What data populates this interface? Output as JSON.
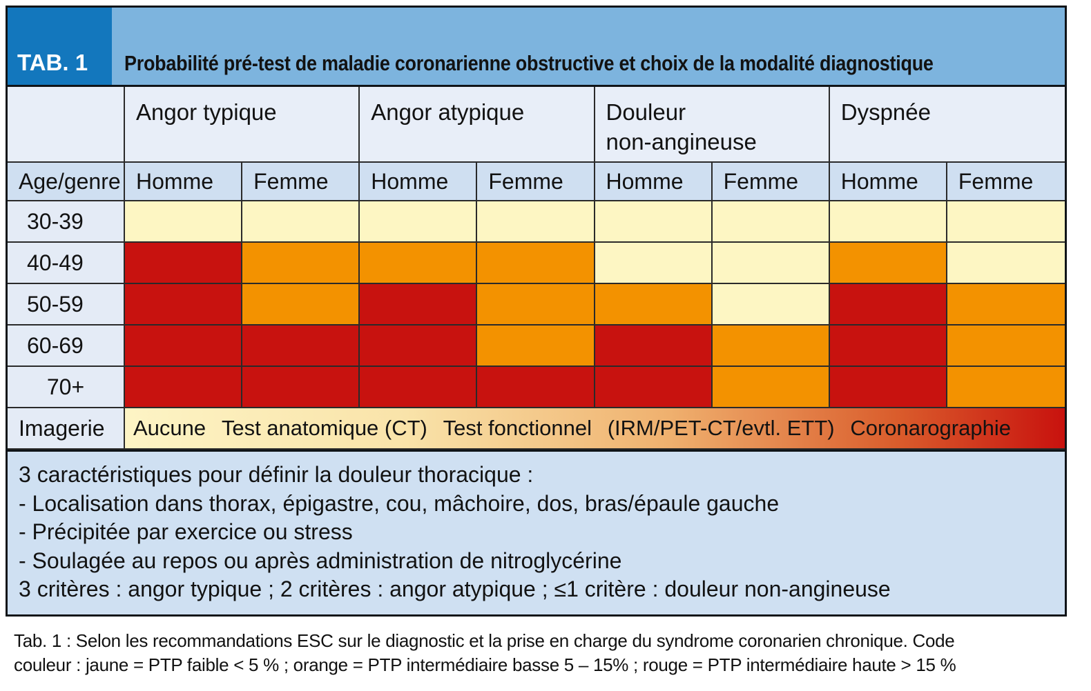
{
  "header": {
    "tab_label": "TAB. 1",
    "title": "Probabilité pré-test de maladie coronarienne obstructive et choix de la modalité diagnostique"
  },
  "colors": {
    "yellow": "#fdf6c3",
    "orange": "#f39200",
    "red": "#c8120f",
    "tab_box_blue": "#1377bd",
    "banner_blue": "#7db4de",
    "group_header_bg": "#e8eef8",
    "sub_header_bg": "#cfdff1",
    "row_label_bg": "#e4ebf6",
    "footnote_bg": "#cfe0f2"
  },
  "table": {
    "corner_label": "",
    "group_headers": [
      "Angor typique",
      "Angor atypique",
      "Douleur\nnon-angineuse",
      "Dyspnée"
    ],
    "sub_headers": [
      "Age/genre",
      "Homme",
      "Femme",
      "Homme",
      "Femme",
      "Homme",
      "Femme",
      "Homme",
      "Femme"
    ],
    "rows": [
      {
        "label": "30-39",
        "center": false,
        "cells": [
          "yellow",
          "yellow",
          "yellow",
          "yellow",
          "yellow",
          "yellow",
          "yellow",
          "yellow"
        ]
      },
      {
        "label": "40-49",
        "center": false,
        "cells": [
          "red",
          "orange",
          "orange",
          "orange",
          "yellow",
          "yellow",
          "orange",
          "yellow"
        ]
      },
      {
        "label": "50-59",
        "center": false,
        "cells": [
          "red",
          "orange",
          "red",
          "orange",
          "orange",
          "yellow",
          "red",
          "orange"
        ]
      },
      {
        "label": "60-69",
        "center": false,
        "cells": [
          "red",
          "red",
          "red",
          "orange",
          "red",
          "orange",
          "red",
          "orange"
        ]
      },
      {
        "label": "70+",
        "center": true,
        "cells": [
          "red",
          "red",
          "red",
          "red",
          "red",
          "orange",
          "red",
          "orange"
        ]
      }
    ],
    "imagerie": {
      "label": "Imagerie",
      "options": [
        "Aucune",
        "Test anatomique (CT)",
        "Test fonctionnel",
        "(IRM/PET-CT/evtl. ETT)",
        "Coronarographie"
      ]
    }
  },
  "footnote_lines": [
    "3 caractéristiques pour définir la douleur thoracique :",
    "- Localisation dans thorax, épigastre, cou, mâchoire, dos, bras/épaule gauche",
    "- Précipitée par exercice ou stress",
    "- Soulagée au repos ou après administration de nitroglycérine",
    "3 critères : angor typique ; 2 critères : angor atypique ; ≤1 critère : douleur non-angineuse"
  ],
  "caption_lines": [
    "Tab. 1 : Selon les recommandations ESC sur le diagnostic et la prise en charge du syndrome coronarien chronique. Code",
    "couleur : jaune = PTP faible < 5 % ;  orange = PTP intermédiaire basse 5 – 15% ; rouge = PTP intermédiaire haute > 15 %"
  ]
}
